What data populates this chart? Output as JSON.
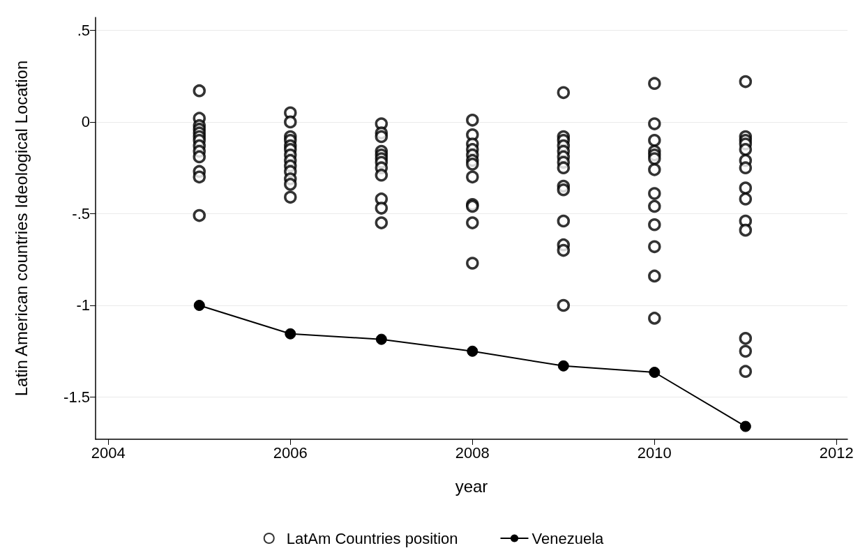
{
  "chart_data": {
    "type": "scatter",
    "xlabel": "year",
    "ylabel": "Latin American countries Ideological Location",
    "xlim": [
      2003.86,
      2012.12
    ],
    "xticks": [
      2004,
      2006,
      2008,
      2010,
      2012
    ],
    "ylim": [
      -1.73,
      0.57
    ],
    "yticks": [
      {
        "value": 0.5,
        "label": ".5"
      },
      0,
      {
        "value": -0.5,
        "label": "-.5"
      },
      -1,
      {
        "value": -1.5,
        "label": "-1.5"
      }
    ],
    "grid": "y",
    "legend": "bottom",
    "marker": "circle",
    "series": [
      {
        "name": "LatAm Countries position",
        "color": "#000000",
        "x": [
          2005,
          2005,
          2005,
          2005,
          2005,
          2005,
          2005,
          2005,
          2005,
          2005,
          2005,
          2005,
          2005,
          2006,
          2006,
          2006,
          2006,
          2006,
          2006,
          2006,
          2006,
          2006,
          2006,
          2006,
          2006,
          2006,
          2007,
          2007,
          2007,
          2007,
          2007,
          2007,
          2007,
          2007,
          2007,
          2007,
          2007,
          2007,
          2008,
          2008,
          2008,
          2008,
          2008,
          2008,
          2008,
          2008,
          2008,
          2008,
          2008,
          2008,
          2009,
          2009,
          2009,
          2009,
          2009,
          2009,
          2009,
          2009,
          2009,
          2009,
          2009,
          2009,
          2009,
          2009,
          2010,
          2010,
          2010,
          2010,
          2010,
          2010,
          2010,
          2010,
          2010,
          2010,
          2010,
          2010,
          2010,
          2011,
          2011,
          2011,
          2011,
          2011,
          2011,
          2011,
          2011,
          2011,
          2011,
          2011,
          2011,
          2011,
          2011
        ],
        "values": [
          0.17,
          0.02,
          -0.02,
          -0.04,
          -0.06,
          -0.08,
          -0.1,
          -0.13,
          -0.16,
          -0.19,
          -0.27,
          -0.3,
          -0.51,
          0.05,
          0.0,
          -0.08,
          -0.1,
          -0.13,
          -0.15,
          -0.18,
          -0.21,
          -0.24,
          -0.27,
          -0.31,
          -0.34,
          -0.41,
          -0.01,
          -0.06,
          -0.08,
          -0.16,
          -0.18,
          -0.2,
          -0.22,
          -0.25,
          -0.29,
          -0.42,
          -0.47,
          -0.55,
          0.01,
          -0.07,
          -0.12,
          -0.15,
          -0.18,
          -0.21,
          -0.23,
          -0.3,
          -0.45,
          -0.46,
          -0.55,
          -0.77,
          0.16,
          -0.08,
          -0.1,
          -0.13,
          -0.16,
          -0.19,
          -0.22,
          -0.25,
          -0.35,
          -0.37,
          -0.54,
          -0.67,
          -0.7,
          -1.0,
          0.21,
          -0.01,
          -0.1,
          -0.16,
          -0.18,
          -0.2,
          -0.26,
          -0.39,
          -0.46,
          -0.56,
          -0.68,
          -0.84,
          -1.07,
          0.22,
          -0.08,
          -0.1,
          -0.12,
          -0.15,
          -0.21,
          -0.25,
          -0.36,
          -0.42,
          -0.54,
          -0.59,
          -1.18,
          -1.25,
          -1.36
        ]
      },
      {
        "name": "Venezuela",
        "type": "line",
        "color": "#000000",
        "x": [
          2005,
          2006,
          2007,
          2008,
          2009,
          2010,
          2011
        ],
        "values": [
          -1.0,
          -1.155,
          -1.185,
          -1.25,
          -1.33,
          -1.365,
          -1.66
        ]
      }
    ]
  }
}
